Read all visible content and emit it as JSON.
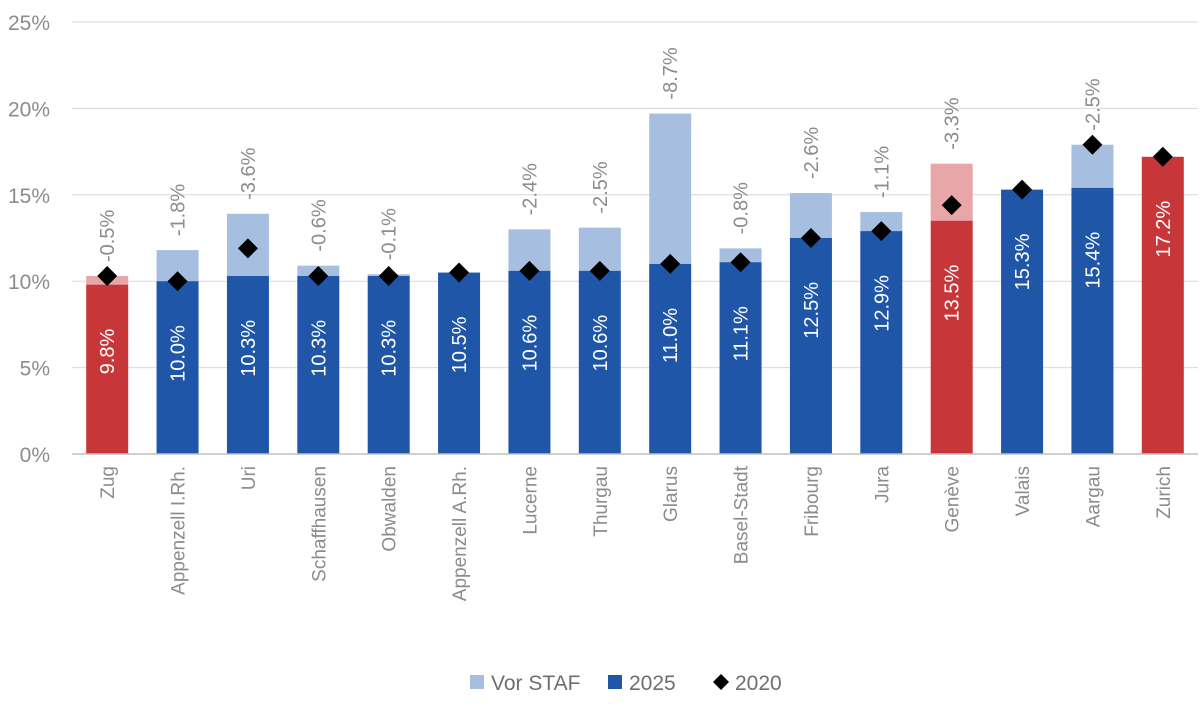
{
  "chart_data": {
    "type": "bar",
    "title": "",
    "xlabel": "",
    "ylabel": "",
    "ylim": [
      0,
      25
    ],
    "yticks": [
      0,
      5,
      10,
      15,
      20,
      25
    ],
    "ytick_labels": [
      "0%",
      "5%",
      "10%",
      "15%",
      "20%",
      "25%"
    ],
    "categories": [
      "Zug",
      "Appenzell I.Rh.",
      "Uri",
      "Schaffhausen",
      "Obwalden",
      "Appenzell A.Rh.",
      "Lucerne",
      "Thurgau",
      "Glarus",
      "Basel-Stadt",
      "Fribourg",
      "Jura",
      "Genève",
      "Valais",
      "Aargau",
      "Zurich"
    ],
    "series": [
      {
        "name": "2025",
        "values": [
          9.8,
          10.0,
          10.3,
          10.3,
          10.3,
          10.5,
          10.6,
          10.6,
          11.0,
          11.1,
          12.5,
          12.9,
          13.5,
          15.3,
          15.4,
          17.2
        ]
      },
      {
        "name": "Vor STAF",
        "values": [
          10.3,
          11.8,
          13.9,
          10.9,
          10.4,
          10.5,
          13.0,
          13.1,
          19.7,
          11.9,
          15.1,
          14.0,
          16.8,
          15.3,
          17.9,
          17.2
        ]
      },
      {
        "name": "2020",
        "values": [
          10.3,
          10.0,
          11.9,
          10.3,
          10.3,
          10.5,
          10.6,
          10.6,
          11.0,
          11.1,
          12.5,
          12.9,
          14.4,
          15.3,
          17.9,
          17.2
        ]
      }
    ],
    "value_labels": [
      "9.8%",
      "10.0%",
      "10.3%",
      "10.3%",
      "10.3%",
      "10.5%",
      "10.6%",
      "10.6%",
      "11.0%",
      "11.1%",
      "12.5%",
      "12.9%",
      "13.5%",
      "15.3%",
      "15.4%",
      "17.2%"
    ],
    "diff_labels": [
      "-0.5%",
      "-1.8%",
      "-3.6%",
      "-0.6%",
      "-0.1%",
      "",
      "-2.4%",
      "-2.5%",
      "-8.7%",
      "-0.8%",
      "-2.6%",
      "-1.1%",
      "-3.3%",
      "",
      "-2.5%",
      ""
    ],
    "highlight": [
      true,
      false,
      false,
      false,
      false,
      false,
      false,
      false,
      false,
      false,
      false,
      false,
      true,
      false,
      false,
      true
    ],
    "colors": {
      "base": "#1f56a8",
      "upper": "#a6bfe0",
      "base_highlight": "#c7373a",
      "upper_highlight": "#e8a6a8",
      "marker": "#000000",
      "grid": "#d9d9d9",
      "axis": "#bfbfbf"
    },
    "legend": [
      {
        "name": "Vor STAF",
        "symbol": "square",
        "color": "#a6bfe0"
      },
      {
        "name": "2025",
        "symbol": "square",
        "color": "#1f56a8"
      },
      {
        "name": "2020",
        "symbol": "diamond",
        "color": "#000000"
      }
    ],
    "legend_position": "bottom"
  }
}
